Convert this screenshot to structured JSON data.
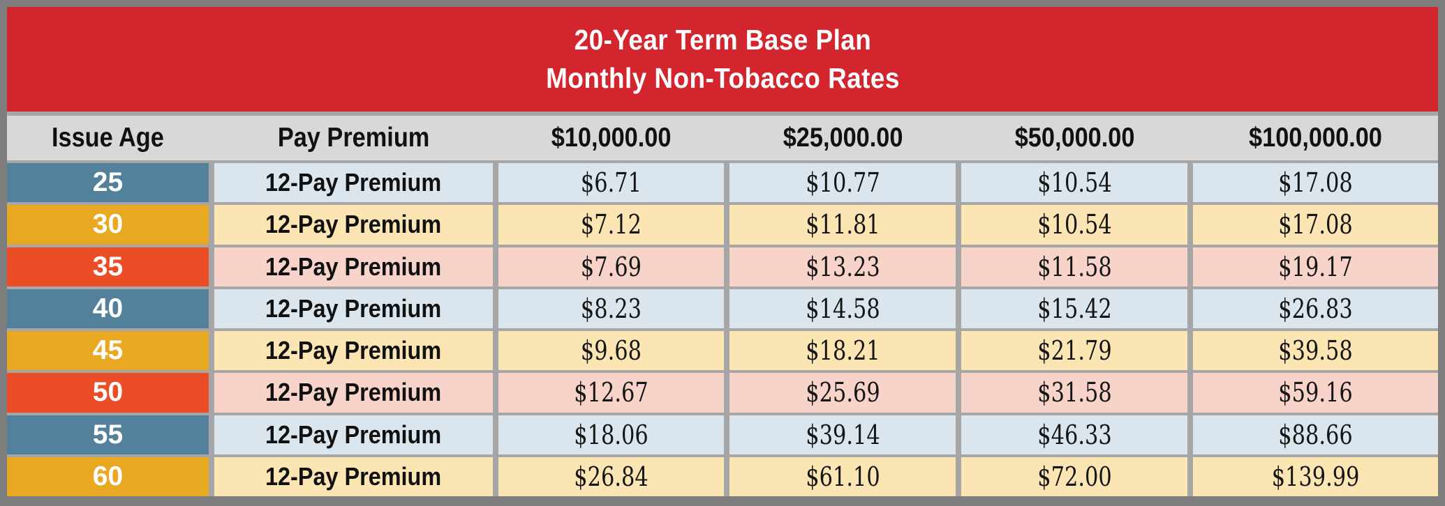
{
  "chart_data": {
    "type": "table",
    "title": "20-Year Term Base Plan",
    "subtitle": "Monthly Non-Tobacco Rates",
    "columns": [
      "Issue Age",
      "Pay Premium",
      "$10,000.00",
      "$25,000.00",
      "$50,000.00",
      "$100,000.00"
    ],
    "rows": [
      {
        "age": "25",
        "label": "12-Pay Premium",
        "theme": "blue",
        "values": [
          "$6.71",
          "$10.77",
          "$10.54",
          "$17.08"
        ]
      },
      {
        "age": "30",
        "label": "12-Pay Premium",
        "theme": "gold",
        "values": [
          "$7.12",
          "$11.81",
          "$10.54",
          "$17.08"
        ]
      },
      {
        "age": "35",
        "label": "12-Pay Premium",
        "theme": "orange",
        "values": [
          "$7.69",
          "$13.23",
          "$11.58",
          "$19.17"
        ]
      },
      {
        "age": "40",
        "label": "12-Pay Premium",
        "theme": "blue",
        "values": [
          "$8.23",
          "$14.58",
          "$15.42",
          "$26.83"
        ]
      },
      {
        "age": "45",
        "label": "12-Pay Premium",
        "theme": "gold",
        "values": [
          "$9.68",
          "$18.21",
          "$21.79",
          "$39.58"
        ]
      },
      {
        "age": "50",
        "label": "12-Pay Premium",
        "theme": "orange",
        "values": [
          "$12.67",
          "$25.69",
          "$31.58",
          "$59.16"
        ]
      },
      {
        "age": "55",
        "label": "12-Pay Premium",
        "theme": "blue",
        "values": [
          "$18.06",
          "$39.14",
          "$46.33",
          "$88.66"
        ]
      },
      {
        "age": "60",
        "label": "12-Pay Premium",
        "theme": "gold",
        "values": [
          "$26.84",
          "$61.10",
          "$72.00",
          "$139.99"
        ]
      }
    ],
    "colors": {
      "title_band": "#D2252E",
      "title_text": "#FFFFFF",
      "column_header_bg": "#D8D8D8",
      "grid_line": "#A6A6A6",
      "outer_frame": "#7E7E7E",
      "age_blue": "#53809B",
      "age_gold": "#E9A822",
      "age_orange": "#EB4E27",
      "row_blue": "#DAE5ED",
      "row_gold": "#FBE5B2",
      "row_orange": "#F7D3CA"
    }
  }
}
